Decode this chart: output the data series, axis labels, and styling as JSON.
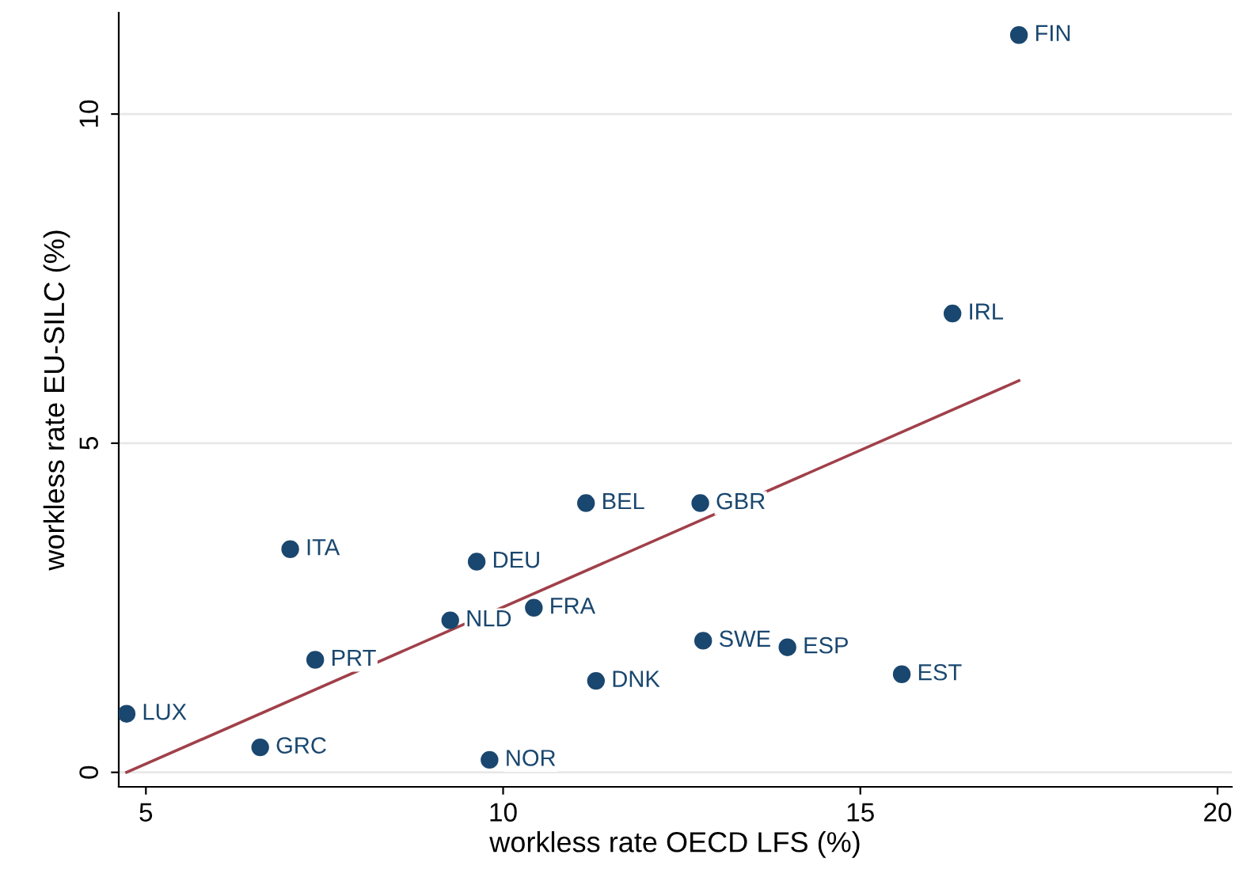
{
  "chart_data": {
    "type": "scatter",
    "xlabel": "workless rate OECD LFS (%)",
    "ylabel": "workless rate EU-SILC (%)",
    "xlim": [
      4.62,
      20.2
    ],
    "ylim": [
      -0.22,
      11.54
    ],
    "xticks": [
      5,
      10,
      15,
      20
    ],
    "yticks": [
      0,
      5,
      10
    ],
    "grid": "y",
    "series": [
      {
        "marker": "circle",
        "color": "#1a476f",
        "x": [
          17.22,
          16.29,
          11.16,
          12.76,
          7.02,
          9.63,
          10.43,
          9.26,
          12.8,
          13.98,
          15.58,
          11.3,
          7.37,
          4.73,
          6.6,
          9.81
        ],
        "values": [
          11.2,
          6.97,
          4.09,
          4.09,
          3.39,
          3.2,
          2.5,
          2.31,
          2.0,
          1.9,
          1.49,
          1.39,
          1.71,
          0.89,
          0.38,
          0.19
        ]
      },
      {
        "type": "line",
        "color": "#a0404a",
        "x": [
          4.73,
          17.22
        ],
        "values": [
          0.0,
          5.95
        ]
      }
    ],
    "annotations": [
      {
        "text": "FIN",
        "x": 17.22,
        "y": 11.2
      },
      {
        "text": "IRL",
        "x": 16.29,
        "y": 6.97
      },
      {
        "text": "BEL",
        "x": 11.16,
        "y": 4.09
      },
      {
        "text": "GBR",
        "x": 12.76,
        "y": 4.09
      },
      {
        "text": "ITA",
        "x": 7.02,
        "y": 3.39
      },
      {
        "text": "DEU",
        "x": 9.63,
        "y": 3.2
      },
      {
        "text": "FRA",
        "x": 10.43,
        "y": 2.5
      },
      {
        "text": "NLD",
        "x": 9.26,
        "y": 2.31
      },
      {
        "text": "SWE",
        "x": 12.8,
        "y": 2.0
      },
      {
        "text": "ESP",
        "x": 13.98,
        "y": 1.9
      },
      {
        "text": "EST",
        "x": 15.58,
        "y": 1.49
      },
      {
        "text": "DNK",
        "x": 11.3,
        "y": 1.39
      },
      {
        "text": "PRT",
        "x": 7.37,
        "y": 1.71
      },
      {
        "text": "LUX",
        "x": 4.73,
        "y": 0.89
      },
      {
        "text": "GRC",
        "x": 6.6,
        "y": 0.38
      },
      {
        "text": "NOR",
        "x": 9.81,
        "y": 0.19
      }
    ]
  }
}
